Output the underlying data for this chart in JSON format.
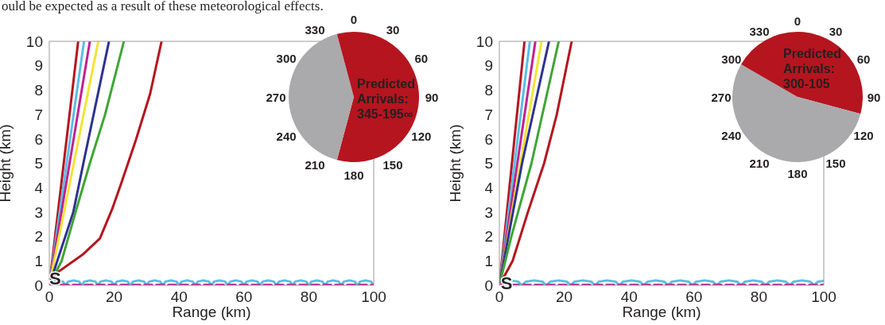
{
  "chart_data": [
    {
      "type": "line",
      "xlabel": "Range (km)",
      "ylabel": "Height (km)",
      "xlim": [
        0,
        100
      ],
      "ylim": [
        0,
        10
      ],
      "xticks": [
        0,
        20,
        40,
        60,
        80,
        100
      ],
      "yticks": [
        0,
        1,
        2,
        3,
        4,
        5,
        6,
        7,
        8,
        9,
        10
      ],
      "annotations": [
        "ould be expected as a result of these meteorological effects.",
        {
          "text": "S",
          "x": 1.8,
          "y": 0.3
        }
      ],
      "series": [
        {
          "color": "#b5151f",
          "x": [
            0,
            8.9
          ],
          "values": [
            0,
            10
          ]
        },
        {
          "color": "#5bbde6",
          "x": [
            0,
            10.7
          ],
          "values": [
            0,
            10
          ]
        },
        {
          "color": "#c2228f",
          "x": [
            0,
            12.5
          ],
          "values": [
            0,
            10
          ]
        },
        {
          "color": "#f2e434",
          "x": [
            0,
            15.1
          ],
          "values": [
            0,
            10
          ]
        },
        {
          "color": "#2e3192",
          "x": [
            0,
            7.4,
            10.5,
            18.4
          ],
          "values": [
            0,
            3,
            5,
            10
          ]
        },
        {
          "color": "#3fa535",
          "x": [
            0,
            3.8,
            8.1,
            12.5,
            17.2,
            23
          ],
          "values": [
            0,
            1,
            3,
            5,
            7,
            10
          ]
        },
        {
          "color": "#b5151f",
          "x": [
            0,
            1.8,
            10.5,
            15.6,
            19.4,
            22.4,
            26.7,
            31.1,
            34.6
          ],
          "values": [
            0,
            0.46,
            1.28,
            1.92,
            3.13,
            4.27,
            5.96,
            7.86,
            10
          ]
        },
        {
          "color": "#c2228f",
          "line_style": "dashed",
          "x": [
            0,
            100
          ],
          "values": [
            0,
            0
          ]
        },
        {
          "color": "#5bbde6",
          "x": [
            0,
            0.8,
            2.5,
            4.2,
            5,
            5.8,
            7.5,
            9.2,
            10,
            10.8,
            12.5,
            14.2,
            15,
            15.8,
            17.5,
            19.2,
            20,
            20.8,
            22.5,
            24.2,
            25,
            25.8,
            27.5,
            29.2,
            30,
            30.8,
            32.5,
            34.2,
            35,
            35.8,
            37.5,
            39.2,
            40,
            40.8,
            42.5,
            44.2,
            45,
            45.8,
            47.5,
            49.2,
            50,
            50.8,
            52.5,
            54.2,
            55,
            55.8,
            57.5,
            59.2,
            60,
            60.8,
            62.5,
            64.2,
            65,
            65.8,
            67.5,
            69.2,
            70,
            70.8,
            72.5,
            74.2,
            75,
            75.8,
            77.5,
            79.2,
            80,
            80.8,
            82.5,
            84.2,
            85,
            85.8,
            87.5,
            89.2,
            90,
            90.8,
            92.5,
            94.2,
            95,
            95.8,
            97.5,
            99.2,
            100
          ],
          "values": [
            0,
            0.15,
            0.2,
            0.15,
            0,
            0.15,
            0.2,
            0.15,
            0,
            0.15,
            0.2,
            0.15,
            0,
            0.15,
            0.2,
            0.15,
            0,
            0.15,
            0.2,
            0.15,
            0,
            0.15,
            0.2,
            0.15,
            0,
            0.15,
            0.2,
            0.15,
            0,
            0.15,
            0.2,
            0.15,
            0,
            0.15,
            0.2,
            0.15,
            0,
            0.15,
            0.2,
            0.15,
            0,
            0.15,
            0.2,
            0.15,
            0,
            0.15,
            0.2,
            0.15,
            0,
            0.15,
            0.2,
            0.15,
            0,
            0.15,
            0.2,
            0.15,
            0,
            0.15,
            0.2,
            0.15,
            0,
            0.15,
            0.2,
            0.15,
            0,
            0.15,
            0.2,
            0.15,
            0,
            0.15,
            0.2,
            0.15,
            0,
            0.15,
            0.2,
            0.15,
            0,
            0.15,
            0.2,
            0.15,
            0
          ]
        }
      ]
    },
    {
      "type": "pie",
      "categories": [
        null,
        null,
        null
      ],
      "values": [
        54.17,
        41.67,
        4.17
      ],
      "colors": [
        "#b5151f",
        "#aaaaad",
        "#b5151f"
      ],
      "annotations": [
        "Predicted Arrivals: 345-195∞",
        "0",
        "30",
        "60",
        "90",
        "120",
        "150",
        "180",
        "210",
        "240",
        "270",
        "300",
        "330"
      ]
    },
    {
      "type": "line",
      "xlabel": "Range (km)",
      "ylabel": "Height (km)",
      "xlim": [
        0,
        100
      ],
      "ylim": [
        0,
        10
      ],
      "xticks": [
        0,
        20,
        40,
        60,
        80,
        100
      ],
      "yticks": [
        0,
        1,
        2,
        3,
        4,
        5,
        6,
        7,
        8,
        9,
        10
      ],
      "annotations": [
        {
          "text": "S",
          "x": 2.2,
          "y": 0.1
        }
      ],
      "series": [
        {
          "color": "#b5151f",
          "x": [
            0,
            7.75
          ],
          "values": [
            0,
            10
          ]
        },
        {
          "color": "#5bbde6",
          "x": [
            0,
            9.4
          ],
          "values": [
            0,
            10
          ]
        },
        {
          "color": "#c2228f",
          "x": [
            0,
            11.1
          ],
          "values": [
            0,
            10
          ]
        },
        {
          "color": "#f2e434",
          "x": [
            0,
            13
          ],
          "values": [
            0,
            10
          ]
        },
        {
          "color": "#2e3192",
          "x": [
            0,
            7,
            15.3
          ],
          "values": [
            0,
            5,
            10
          ]
        },
        {
          "color": "#3fa535",
          "x": [
            0,
            3.7,
            9.9,
            18.3
          ],
          "values": [
            0,
            2,
            5,
            10
          ]
        },
        {
          "color": "#b5151f",
          "x": [
            0,
            4.1,
            8.8,
            13.8,
            17.7,
            22.3
          ],
          "values": [
            0,
            1,
            3,
            5,
            7,
            10
          ]
        },
        {
          "color": "#c2228f",
          "line_style": "dashed",
          "x": [
            0,
            100
          ],
          "values": [
            0,
            0
          ]
        },
        {
          "color": "#5bbde6",
          "x": [
            0,
            1.2,
            3.5,
            5.8,
            7,
            8.2,
            10.75,
            13.3,
            14.5,
            15.7,
            18.25,
            20.8,
            22,
            23.2,
            25.75,
            28.3,
            29.5,
            30.7,
            33.25,
            35.8,
            37,
            38.2,
            40.75,
            43.3,
            44.5,
            45.7,
            48.25,
            50.8,
            52,
            53.2,
            55.75,
            58.3,
            59.5,
            60.7,
            63.25,
            65.8,
            67,
            68.2,
            70.75,
            73.3,
            74.5,
            75.7,
            78.25,
            80.8,
            82,
            83.2,
            85.75,
            88.3,
            89.5,
            90.7,
            93.25,
            95.8,
            97,
            98.2,
            100
          ],
          "values": [
            0,
            0.15,
            0.2,
            0.15,
            0,
            0.15,
            0.2,
            0.15,
            0,
            0.15,
            0.2,
            0.15,
            0,
            0.15,
            0.2,
            0.15,
            0,
            0.15,
            0.2,
            0.15,
            0,
            0.15,
            0.2,
            0.15,
            0,
            0.15,
            0.2,
            0.15,
            0,
            0.15,
            0.2,
            0.15,
            0,
            0.15,
            0.2,
            0.15,
            0,
            0.15,
            0.2,
            0.15,
            0,
            0.15,
            0.2,
            0.15,
            0,
            0.15,
            0.2,
            0.15,
            0,
            0.15,
            0.2,
            0.15,
            0,
            0.15,
            0.18
          ]
        }
      ]
    },
    {
      "type": "pie",
      "categories": [
        null,
        null,
        null
      ],
      "values": [
        29.17,
        54.17,
        16.67
      ],
      "colors": [
        "#b5151f",
        "#aaaaad",
        "#b5151f"
      ],
      "annotations": [
        "Predicted Arrivals: 300-105",
        "0",
        "30",
        "60",
        "90",
        "120",
        "150",
        "180",
        "210",
        "240",
        "270",
        "300",
        "330"
      ]
    }
  ]
}
